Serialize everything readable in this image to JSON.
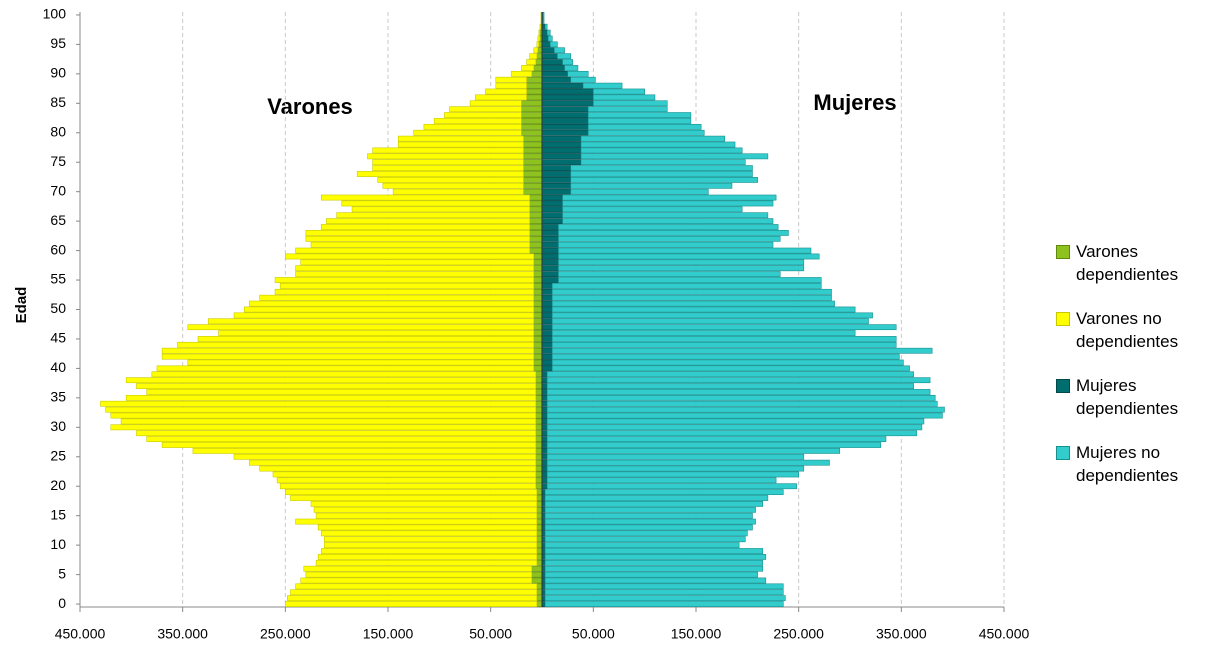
{
  "chart_data": {
    "type": "bar",
    "orientation": "horizontal",
    "stacked": true,
    "ylabel": "Edad",
    "annotations": [
      {
        "text": "Varones",
        "color": "#9ac31c"
      },
      {
        "text": "Mujeres",
        "color": "#3cc8c8"
      }
    ],
    "categories": [
      0,
      null,
      null,
      null,
      null,
      5,
      null,
      null,
      null,
      null,
      10,
      null,
      null,
      null,
      null,
      15,
      null,
      null,
      null,
      null,
      20,
      null,
      null,
      null,
      null,
      25,
      null,
      null,
      null,
      null,
      30,
      null,
      null,
      null,
      null,
      35,
      null,
      null,
      null,
      null,
      40,
      null,
      null,
      null,
      null,
      45,
      null,
      null,
      null,
      null,
      50,
      null,
      null,
      null,
      null,
      55,
      null,
      null,
      null,
      null,
      60,
      null,
      null,
      null,
      null,
      65,
      null,
      null,
      null,
      null,
      70,
      null,
      null,
      null,
      null,
      75,
      null,
      null,
      null,
      null,
      80,
      null,
      null,
      null,
      null,
      85,
      null,
      null,
      null,
      null,
      90,
      null,
      null,
      null,
      null,
      95,
      null,
      null,
      null,
      null,
      100
    ],
    "xlim": [
      -450000,
      450000
    ],
    "xticks": [
      {
        "value": -450000,
        "label": "450.000"
      },
      {
        "value": -350000,
        "label": "350.000"
      },
      {
        "value": -250000,
        "label": "250.000"
      },
      {
        "value": -150000,
        "label": "150.000"
      },
      {
        "value": -50000,
        "label": "50.000"
      },
      {
        "value": 50000,
        "label": "50.000"
      },
      {
        "value": 150000,
        "label": "150.000"
      },
      {
        "value": 250000,
        "label": "250.000"
      },
      {
        "value": 350000,
        "label": "350.000"
      },
      {
        "value": 450000,
        "label": "450.000"
      }
    ],
    "grid": true,
    "series": [
      {
        "name": "Varones dependientes",
        "color": "#8dc21f",
        "stroke": "#5f8a0c",
        "values": [
          -5000,
          -5000,
          -5000,
          -5000,
          -10000,
          -10000,
          -10000,
          -5000,
          -5000,
          -5000,
          -5000,
          -5000,
          -5000,
          -5000,
          -5000,
          -5000,
          -5000,
          -5000,
          -5000,
          -5000,
          -6000,
          -6000,
          -6000,
          -6000,
          -6000,
          -6000,
          -6000,
          -6000,
          -6000,
          -6000,
          -6000,
          -6000,
          -6000,
          -6000,
          -6000,
          -6000,
          -6000,
          -6000,
          -6000,
          -6000,
          -8000,
          -8000,
          -8000,
          -8000,
          -8000,
          -8000,
          -8000,
          -8000,
          -8000,
          -8000,
          -8000,
          -8000,
          -8000,
          -8000,
          -8000,
          -8000,
          -8000,
          -8000,
          -8000,
          -8000,
          -12000,
          -12000,
          -12000,
          -12000,
          -12000,
          -12000,
          -12000,
          -12000,
          -12000,
          -12000,
          -18000,
          -18000,
          -18000,
          -18000,
          -18000,
          -18000,
          -18000,
          -18000,
          -18000,
          -18000,
          -20000,
          -20000,
          -20000,
          -20000,
          -20000,
          -20000,
          -15000,
          -15000,
          -15000,
          -15000,
          -10000,
          -8000,
          -6000,
          -5000,
          -4000,
          -3000,
          -2000,
          -2000,
          -1000,
          -500,
          -500
        ]
      },
      {
        "name": "Varones no dependientes",
        "color": "#ffff00",
        "stroke": "#c8c800",
        "values": [
          -245000,
          -243000,
          -240000,
          -235000,
          -225000,
          -220000,
          -222000,
          -215000,
          -213000,
          -210000,
          -207000,
          -207000,
          -210000,
          -213000,
          -235000,
          -215000,
          -217000,
          -220000,
          -240000,
          -245000,
          -249000,
          -252000,
          -256000,
          -269000,
          -279000,
          -294000,
          -334000,
          -364000,
          -379000,
          -389000,
          -414000,
          -404000,
          -414000,
          -419000,
          -424000,
          -399000,
          -379000,
          -389000,
          -399000,
          -374000,
          -367000,
          -337000,
          -362000,
          -362000,
          -347000,
          -327000,
          -307000,
          -337000,
          -317000,
          -292000,
          -282000,
          -277000,
          -267000,
          -252000,
          -247000,
          -252000,
          -232000,
          -232000,
          -227000,
          -242000,
          -228000,
          -213000,
          -218000,
          -218000,
          -203000,
          -198000,
          -188000,
          -173000,
          -183000,
          -203000,
          -127000,
          -137000,
          -142000,
          -162000,
          -147000,
          -147000,
          -152000,
          -147000,
          -122000,
          -122000,
          -105000,
          -95000,
          -85000,
          -75000,
          -70000,
          -50000,
          -50000,
          -40000,
          -30000,
          -30000,
          -20000,
          -12000,
          -9000,
          -7000,
          -4000,
          -2000,
          -2000,
          -1000,
          -1000,
          -500,
          -500
        ]
      },
      {
        "name": "Mujeres dependientes",
        "color": "#006d6f",
        "stroke": "#004a4c",
        "values": [
          3000,
          3000,
          3000,
          3000,
          3000,
          3000,
          3000,
          3000,
          3000,
          3000,
          3000,
          3000,
          3000,
          3000,
          3000,
          3000,
          3000,
          3000,
          3000,
          3000,
          5000,
          5000,
          5000,
          5000,
          5000,
          5000,
          5000,
          5000,
          5000,
          5000,
          5000,
          5000,
          5000,
          5000,
          5000,
          5000,
          5000,
          5000,
          5000,
          5000,
          10000,
          10000,
          10000,
          10000,
          10000,
          10000,
          10000,
          10000,
          10000,
          10000,
          10000,
          10000,
          10000,
          10000,
          10000,
          16000,
          16000,
          16000,
          16000,
          16000,
          16000,
          16000,
          16000,
          16000,
          16000,
          20000,
          20000,
          20000,
          20000,
          20000,
          28000,
          28000,
          28000,
          28000,
          28000,
          38000,
          38000,
          38000,
          38000,
          38000,
          45000,
          45000,
          45000,
          45000,
          45000,
          50000,
          50000,
          50000,
          40000,
          28000,
          25000,
          22000,
          20000,
          15000,
          12000,
          8000,
          6000,
          5000,
          3000,
          1000,
          1000
        ]
      },
      {
        "name": "Mujeres no dependientes",
        "color": "#33cccc",
        "stroke": "#168f8f",
        "values": [
          232000,
          234000,
          232000,
          232000,
          215000,
          207000,
          212000,
          212000,
          215000,
          212000,
          189000,
          195000,
          197000,
          202000,
          205000,
          202000,
          205000,
          212000,
          217000,
          232000,
          243000,
          223000,
          245000,
          250000,
          275000,
          250000,
          285000,
          325000,
          330000,
          360000,
          365000,
          367000,
          385000,
          387000,
          380000,
          378000,
          373000,
          357000,
          373000,
          357000,
          348000,
          342000,
          338000,
          370000,
          335000,
          335000,
          295000,
          335000,
          308000,
          312000,
          295000,
          275000,
          272000,
          272000,
          262000,
          256000,
          216000,
          239000,
          239000,
          254000,
          246000,
          209000,
          216000,
          224000,
          214000,
          205000,
          200000,
          175000,
          205000,
          208000,
          134000,
          157000,
          182000,
          177000,
          177000,
          160000,
          182000,
          157000,
          150000,
          140000,
          113000,
          110000,
          100000,
          100000,
          77000,
          72000,
          60000,
          50000,
          38000,
          24000,
          20000,
          13000,
          10000,
          13000,
          10000,
          7000,
          4000,
          3000,
          2000,
          1000,
          1000
        ]
      }
    ]
  }
}
